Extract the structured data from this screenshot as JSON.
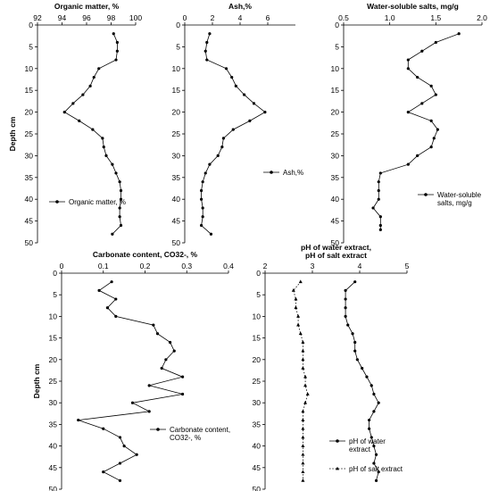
{
  "chart_data": [
    {
      "type": "line",
      "title": "Organic matter, %",
      "xlabel": "Organic matter, %",
      "ylabel": "Depth cm",
      "xlim": [
        92,
        100
      ],
      "ylim": [
        0,
        50
      ],
      "x_ticks": [
        "92",
        "94",
        "96",
        "98",
        "100"
      ],
      "y_ticks": [
        "0",
        "5",
        "10",
        "15",
        "20",
        "25",
        "30",
        "35",
        "40",
        "45",
        "50"
      ],
      "legend_position": "lower-left",
      "series": [
        {
          "name": "Organic matter, %",
          "style": "solid",
          "points": [
            {
              "x": 98.2,
              "y": 2
            },
            {
              "x": 98.5,
              "y": 4
            },
            {
              "x": 98.5,
              "y": 6
            },
            {
              "x": 98.4,
              "y": 8
            },
            {
              "x": 97.0,
              "y": 10
            },
            {
              "x": 96.6,
              "y": 12
            },
            {
              "x": 96.3,
              "y": 14
            },
            {
              "x": 95.7,
              "y": 16
            },
            {
              "x": 94.9,
              "y": 18
            },
            {
              "x": 94.2,
              "y": 20
            },
            {
              "x": 95.4,
              "y": 22
            },
            {
              "x": 96.5,
              "y": 24
            },
            {
              "x": 97.3,
              "y": 26
            },
            {
              "x": 97.4,
              "y": 28
            },
            {
              "x": 97.6,
              "y": 30
            },
            {
              "x": 98.1,
              "y": 32
            },
            {
              "x": 98.4,
              "y": 34
            },
            {
              "x": 98.7,
              "y": 36
            },
            {
              "x": 98.8,
              "y": 38
            },
            {
              "x": 98.8,
              "y": 40
            },
            {
              "x": 98.7,
              "y": 42
            },
            {
              "x": 98.7,
              "y": 44
            },
            {
              "x": 98.8,
              "y": 46
            },
            {
              "x": 98.1,
              "y": 48
            }
          ]
        }
      ]
    },
    {
      "type": "line",
      "title": "Ash,%",
      "xlabel": "Ash,%",
      "ylabel": "",
      "xlim": [
        0,
        8
      ],
      "ylim": [
        0,
        50
      ],
      "x_ticks": [
        "0",
        "2",
        "4",
        "6"
      ],
      "y_ticks": [
        "0",
        "5",
        "10",
        "15",
        "20",
        "25",
        "30",
        "35",
        "40",
        "45",
        "50"
      ],
      "legend_position": "center-right",
      "series": [
        {
          "name": "Ash,%",
          "style": "solid",
          "points": [
            {
              "x": 1.8,
              "y": 2
            },
            {
              "x": 1.6,
              "y": 4
            },
            {
              "x": 1.5,
              "y": 6
            },
            {
              "x": 1.6,
              "y": 8
            },
            {
              "x": 3.0,
              "y": 10
            },
            {
              "x": 3.4,
              "y": 12
            },
            {
              "x": 3.7,
              "y": 14
            },
            {
              "x": 4.3,
              "y": 16
            },
            {
              "x": 5.0,
              "y": 18
            },
            {
              "x": 5.8,
              "y": 20
            },
            {
              "x": 4.7,
              "y": 22
            },
            {
              "x": 3.5,
              "y": 24
            },
            {
              "x": 2.8,
              "y": 26
            },
            {
              "x": 2.7,
              "y": 28
            },
            {
              "x": 2.4,
              "y": 30
            },
            {
              "x": 1.8,
              "y": 32
            },
            {
              "x": 1.5,
              "y": 34
            },
            {
              "x": 1.3,
              "y": 36
            },
            {
              "x": 1.2,
              "y": 38
            },
            {
              "x": 1.2,
              "y": 40
            },
            {
              "x": 1.3,
              "y": 42
            },
            {
              "x": 1.3,
              "y": 44
            },
            {
              "x": 1.2,
              "y": 46
            },
            {
              "x": 1.9,
              "y": 48
            }
          ]
        }
      ]
    },
    {
      "type": "line",
      "title": "Water-soluble salts, mg/g",
      "xlabel": "Water-soluble salts, mg/g",
      "ylabel": "",
      "xlim": [
        0.5,
        2.0
      ],
      "ylim": [
        0,
        50
      ],
      "x_ticks": [
        "0.5",
        "1.0",
        "1.5",
        "2.0"
      ],
      "y_ticks": [
        "0",
        "5",
        "10",
        "15",
        "20",
        "25",
        "30",
        "35",
        "40",
        "45",
        "50"
      ],
      "legend_position": "lower-right",
      "series": [
        {
          "name": "Water-soluble salts, mg/g",
          "style": "solid",
          "points": [
            {
              "x": 1.75,
              "y": 2
            },
            {
              "x": 1.5,
              "y": 4
            },
            {
              "x": 1.35,
              "y": 6
            },
            {
              "x": 1.2,
              "y": 8
            },
            {
              "x": 1.2,
              "y": 10
            },
            {
              "x": 1.3,
              "y": 12
            },
            {
              "x": 1.45,
              "y": 14
            },
            {
              "x": 1.5,
              "y": 16
            },
            {
              "x": 1.35,
              "y": 18
            },
            {
              "x": 1.2,
              "y": 20
            },
            {
              "x": 1.45,
              "y": 22
            },
            {
              "x": 1.52,
              "y": 24
            },
            {
              "x": 1.48,
              "y": 26
            },
            {
              "x": 1.45,
              "y": 28
            },
            {
              "x": 1.3,
              "y": 30
            },
            {
              "x": 1.2,
              "y": 32
            },
            {
              "x": 0.9,
              "y": 34
            },
            {
              "x": 0.88,
              "y": 36
            },
            {
              "x": 0.88,
              "y": 38
            },
            {
              "x": 0.88,
              "y": 40
            },
            {
              "x": 0.82,
              "y": 42
            },
            {
              "x": 0.9,
              "y": 44
            },
            {
              "x": 0.9,
              "y": 46
            },
            {
              "x": 0.9,
              "y": 47
            }
          ]
        }
      ]
    },
    {
      "type": "line",
      "title": "Carbonate content, CO32-, %",
      "xlabel": "Carbonate content, CO32-, %",
      "ylabel": "Depth cm",
      "xlim": [
        0,
        0.4
      ],
      "ylim": [
        0,
        50
      ],
      "x_ticks": [
        "0",
        "0.1",
        "0.2",
        "0.3",
        "0.4"
      ],
      "y_ticks": [
        "0",
        "5",
        "10",
        "15",
        "20",
        "25",
        "30",
        "35",
        "40",
        "45",
        "50"
      ],
      "legend_position": "center-right",
      "series": [
        {
          "name": "Carbonate content, CO32-, %",
          "style": "solid",
          "points": [
            {
              "x": 0.12,
              "y": 2
            },
            {
              "x": 0.09,
              "y": 4
            },
            {
              "x": 0.13,
              "y": 6
            },
            {
              "x": 0.11,
              "y": 8
            },
            {
              "x": 0.13,
              "y": 10
            },
            {
              "x": 0.22,
              "y": 12
            },
            {
              "x": 0.23,
              "y": 14
            },
            {
              "x": 0.26,
              "y": 16
            },
            {
              "x": 0.27,
              "y": 18
            },
            {
              "x": 0.25,
              "y": 20
            },
            {
              "x": 0.24,
              "y": 22
            },
            {
              "x": 0.29,
              "y": 24
            },
            {
              "x": 0.21,
              "y": 26
            },
            {
              "x": 0.29,
              "y": 28
            },
            {
              "x": 0.17,
              "y": 30
            },
            {
              "x": 0.21,
              "y": 32
            },
            {
              "x": 0.04,
              "y": 34
            },
            {
              "x": 0.1,
              "y": 36
            },
            {
              "x": 0.14,
              "y": 38
            },
            {
              "x": 0.15,
              "y": 40
            },
            {
              "x": 0.18,
              "y": 42
            },
            {
              "x": 0.14,
              "y": 44
            },
            {
              "x": 0.1,
              "y": 46
            },
            {
              "x": 0.14,
              "y": 48
            }
          ]
        }
      ]
    },
    {
      "type": "line",
      "title": "pH of water extract, pH of salt extract",
      "title_lines": [
        "pH of water extract,",
        "pH of salt extract"
      ],
      "xlabel": "",
      "ylabel": "",
      "xlim": [
        2,
        5
      ],
      "ylim": [
        0,
        50
      ],
      "x_ticks": [
        "2",
        "3",
        "4",
        "5"
      ],
      "y_ticks": [
        "0",
        "5",
        "10",
        "15",
        "20",
        "25",
        "30",
        "35",
        "40",
        "45",
        "50"
      ],
      "legend_position": "lower-right",
      "series": [
        {
          "name": "pH of water extract",
          "style": "solid",
          "points": [
            {
              "x": 3.9,
              "y": 2
            },
            {
              "x": 3.7,
              "y": 4
            },
            {
              "x": 3.7,
              "y": 6
            },
            {
              "x": 3.7,
              "y": 8
            },
            {
              "x": 3.7,
              "y": 10
            },
            {
              "x": 3.75,
              "y": 12
            },
            {
              "x": 3.85,
              "y": 14
            },
            {
              "x": 3.9,
              "y": 16
            },
            {
              "x": 3.9,
              "y": 18
            },
            {
              "x": 3.95,
              "y": 20
            },
            {
              "x": 4.05,
              "y": 22
            },
            {
              "x": 4.15,
              "y": 24
            },
            {
              "x": 4.25,
              "y": 26
            },
            {
              "x": 4.3,
              "y": 28
            },
            {
              "x": 4.4,
              "y": 30
            },
            {
              "x": 4.3,
              "y": 32
            },
            {
              "x": 4.2,
              "y": 34
            },
            {
              "x": 4.2,
              "y": 36
            },
            {
              "x": 4.25,
              "y": 38
            },
            {
              "x": 4.3,
              "y": 40
            },
            {
              "x": 4.35,
              "y": 42
            },
            {
              "x": 4.3,
              "y": 44
            },
            {
              "x": 4.4,
              "y": 46
            },
            {
              "x": 4.35,
              "y": 48
            }
          ]
        },
        {
          "name": "pH of salt extract",
          "style": "dotted",
          "points": [
            {
              "x": 2.75,
              "y": 2
            },
            {
              "x": 2.6,
              "y": 4
            },
            {
              "x": 2.65,
              "y": 6
            },
            {
              "x": 2.65,
              "y": 8
            },
            {
              "x": 2.7,
              "y": 10
            },
            {
              "x": 2.7,
              "y": 12
            },
            {
              "x": 2.75,
              "y": 14
            },
            {
              "x": 2.8,
              "y": 16
            },
            {
              "x": 2.8,
              "y": 18
            },
            {
              "x": 2.8,
              "y": 20
            },
            {
              "x": 2.8,
              "y": 22
            },
            {
              "x": 2.85,
              "y": 24
            },
            {
              "x": 2.85,
              "y": 26
            },
            {
              "x": 2.9,
              "y": 28
            },
            {
              "x": 2.85,
              "y": 30
            },
            {
              "x": 2.8,
              "y": 32
            },
            {
              "x": 2.8,
              "y": 34
            },
            {
              "x": 2.8,
              "y": 36
            },
            {
              "x": 2.8,
              "y": 38
            },
            {
              "x": 2.8,
              "y": 40
            },
            {
              "x": 2.8,
              "y": 42
            },
            {
              "x": 2.8,
              "y": 44
            },
            {
              "x": 2.8,
              "y": 46
            },
            {
              "x": 2.8,
              "y": 48
            }
          ]
        }
      ]
    }
  ]
}
